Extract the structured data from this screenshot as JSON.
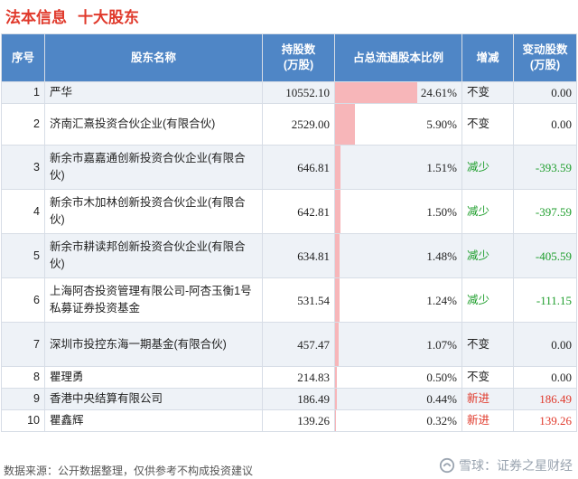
{
  "header": {
    "title": "法本信息",
    "subtitle": "十大股东"
  },
  "table": {
    "columns": [
      "序号",
      "股东名称",
      "持股数\n(万股)",
      "占总流通股本比例",
      "增减",
      "变动股数\n(万股)"
    ],
    "rows": [
      {
        "rank": "1",
        "name": "严华",
        "shares": "10552.10",
        "ratio": "24.61%",
        "ratio_value": 24.61,
        "change": "不变",
        "change_type": "same",
        "delta": "0.00"
      },
      {
        "rank": "2",
        "name": "济南汇熹投资合伙企业(有限合伙)",
        "shares": "2529.00",
        "ratio": "5.90%",
        "ratio_value": 5.9,
        "change": "不变",
        "change_type": "same",
        "delta": "0.00"
      },
      {
        "rank": "3",
        "name": "新余市嘉嘉通创新投资合伙企业(有限合伙)",
        "shares": "646.81",
        "ratio": "1.51%",
        "ratio_value": 1.51,
        "change": "减少",
        "change_type": "dec",
        "delta": "-393.59"
      },
      {
        "rank": "4",
        "name": "新余市木加林创新投资合伙企业(有限合伙)",
        "shares": "642.81",
        "ratio": "1.50%",
        "ratio_value": 1.5,
        "change": "减少",
        "change_type": "dec",
        "delta": "-397.59"
      },
      {
        "rank": "5",
        "name": "新余市耕读邦创新投资合伙企业(有限合伙)",
        "shares": "634.81",
        "ratio": "1.48%",
        "ratio_value": 1.48,
        "change": "减少",
        "change_type": "dec",
        "delta": "-405.59"
      },
      {
        "rank": "6",
        "name": "上海阿杏投资管理有限公司-阿杏玉衡1号私募证券投资基金",
        "shares": "531.54",
        "ratio": "1.24%",
        "ratio_value": 1.24,
        "change": "减少",
        "change_type": "dec",
        "delta": "-111.15"
      },
      {
        "rank": "7",
        "name": "深圳市投控东海一期基金(有限合伙)",
        "shares": "457.47",
        "ratio": "1.07%",
        "ratio_value": 1.07,
        "change": "不变",
        "change_type": "same",
        "delta": "0.00"
      },
      {
        "rank": "8",
        "name": "瞿理勇",
        "shares": "214.83",
        "ratio": "0.50%",
        "ratio_value": 0.5,
        "change": "不变",
        "change_type": "same",
        "delta": "0.00"
      },
      {
        "rank": "9",
        "name": "香港中央结算有限公司",
        "shares": "186.49",
        "ratio": "0.44%",
        "ratio_value": 0.44,
        "change": "新进",
        "change_type": "new",
        "delta": "186.49"
      },
      {
        "rank": "10",
        "name": "瞿鑫辉",
        "shares": "139.26",
        "ratio": "0.32%",
        "ratio_value": 0.32,
        "change": "新进",
        "change_type": "new",
        "delta": "139.26"
      }
    ]
  },
  "footer": {
    "source": "数据来源：公开数据整理，仅供参考不构成投资建议"
  },
  "brand": {
    "logo_icon": "snowball-icon",
    "text": "雪球：证券之星财经"
  },
  "colors": {
    "accent": "#e0392b",
    "header_bg": "#4f86c6",
    "bar": "#f7b6b9",
    "decrease": "#1e9e2c"
  }
}
